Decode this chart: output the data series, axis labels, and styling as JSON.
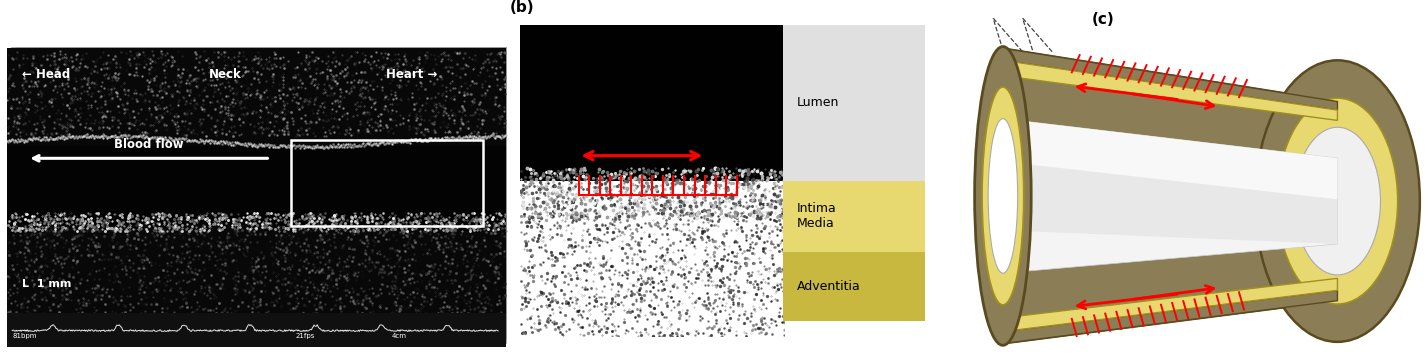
{
  "fig_width": 14.26,
  "fig_height": 3.54,
  "bg_color": "#ffffff",
  "panel_b_label": "(b)",
  "panel_c_label": "(c)",
  "head_text": "← Head",
  "neck_text": "Neck",
  "heart_text": "Heart →",
  "blood_flow_text": "Blood flow",
  "scale_text": "L  1 mm",
  "lumen_text": "Lumen",
  "intima_media_text": "Intima\nMedia",
  "adventitia_text": "Adventitia",
  "label_bg_lumen": "#e8e8e8",
  "label_bg_intima": "#e8d870",
  "label_bg_adventitia": "#c8b840",
  "arrow_color": "#ff0000",
  "outer_color": "#8b7d55",
  "outer_edge_color": "#5a4a20",
  "intima_color": "#e8d870",
  "intima_edge_color": "#a09020",
  "lumen_color": "#e8e8e8",
  "lumen_light_color": "#f0f0f0"
}
